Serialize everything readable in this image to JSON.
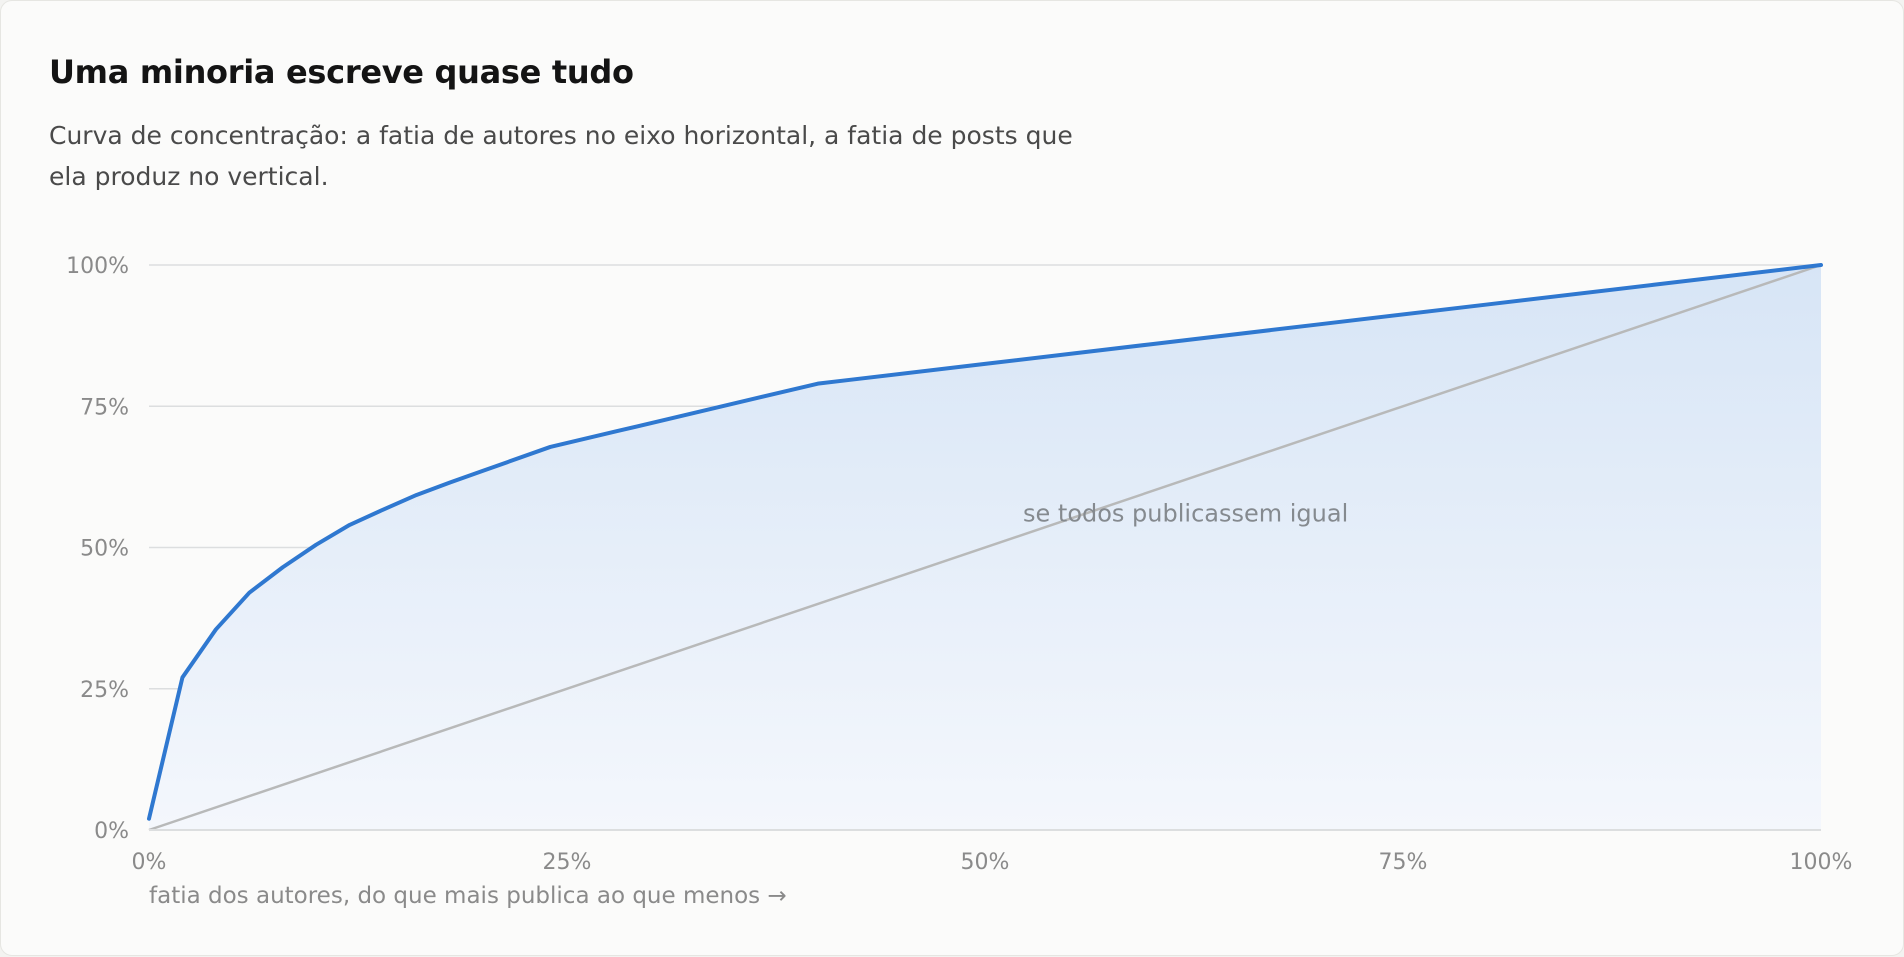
{
  "header": {
    "title": "Uma minoria escreve quase tudo",
    "subtitle": "Curva de concentração: a fatia de autores no eixo horizontal, a fatia de posts que ela produz no vertical."
  },
  "colors": {
    "curve": "#2f78d0",
    "fill_top": "#d7e5f6",
    "fill_bottom": "#f4f7fc",
    "equality_line": "#b8b9b9",
    "grid": "#dcdedf",
    "tick_text": "#8a8a8a"
  },
  "chart_data": {
    "type": "area",
    "title": "Uma minoria escreve quase tudo",
    "xlabel": "fatia dos autores, do que mais publica ao que menos →",
    "ylabel": "",
    "xlim": [
      0,
      100
    ],
    "ylim": [
      0,
      100
    ],
    "grid": true,
    "x_ticks": [
      "0%",
      "25%",
      "50%",
      "75%",
      "100%"
    ],
    "y_ticks": [
      "0%",
      "25%",
      "50%",
      "75%",
      "100%"
    ],
    "series": [
      {
        "x": [
          0,
          2,
          4,
          6,
          8,
          10,
          12,
          14,
          16,
          18,
          20,
          24,
          28,
          32,
          36,
          40,
          42,
          50,
          60,
          70,
          80,
          90,
          100
        ],
        "y": [
          2,
          27,
          35.5,
          42,
          46.5,
          50.5,
          54,
          56.7,
          59.3,
          61.5,
          63.6,
          67.8,
          70.6,
          73.4,
          76.2,
          79,
          79.7,
          82.5,
          86,
          89.5,
          93,
          96.5,
          100
        ]
      },
      {
        "x": [
          0,
          100
        ],
        "y": [
          0,
          100
        ]
      }
    ],
    "annotations": [
      {
        "text": "se todos publicassem igual",
        "x": 62,
        "y": 56
      }
    ]
  }
}
